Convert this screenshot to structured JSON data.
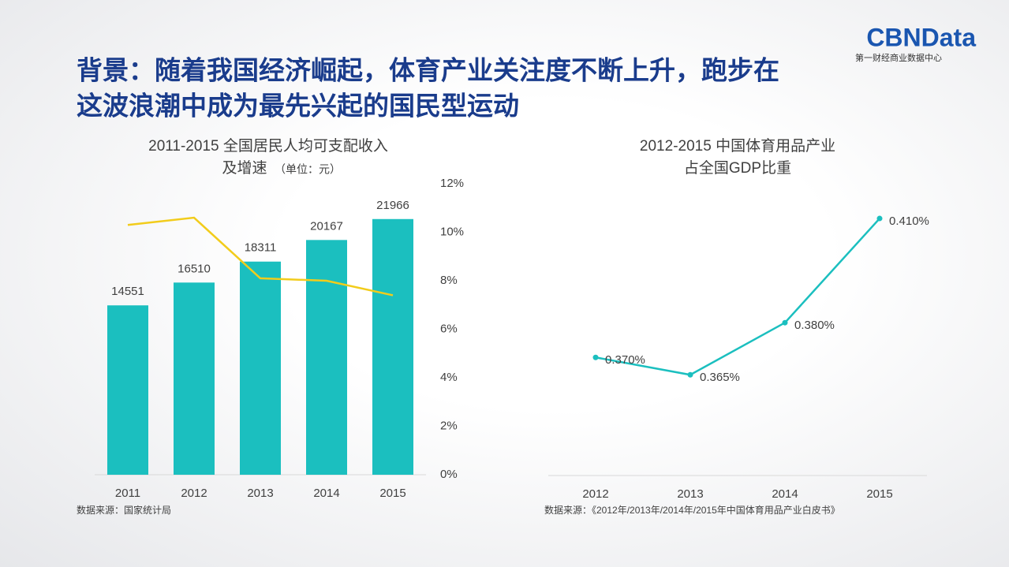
{
  "header": {
    "title": [
      "背景：随着我国经济崛起，体育产业关注度不断上升，跑步在",
      "这波浪潮中成为最先兴起的国民型运动"
    ],
    "logo": "CBNData",
    "logo_subtitle": "第一财经商业数据中心"
  },
  "chart_data": [
    {
      "type": "bar",
      "title": [
        "2011-2015 全国居民人均可支配收入",
        "及增速"
      ],
      "subtitle": "（单位：元）",
      "categories": [
        "2011",
        "2012",
        "2013",
        "2014",
        "2015"
      ],
      "series": [
        {
          "type": "bar",
          "color": "#1bbfbf",
          "values": [
            14551,
            16510,
            18311,
            20167,
            21966
          ]
        },
        {
          "type": "line",
          "color": "#f2cc1b",
          "axis": "y2",
          "values": [
            10.3,
            10.6,
            8.1,
            8.0,
            7.4
          ]
        }
      ],
      "ylim": [
        0,
        25000
      ],
      "y2lim": [
        0,
        12
      ],
      "y2ticks": [
        {
          "value": 0,
          "label": "0%"
        },
        {
          "value": 2,
          "label": "2%"
        },
        {
          "value": 4,
          "label": "4%"
        },
        {
          "value": 6,
          "label": "6%"
        },
        {
          "value": 8,
          "label": "8%"
        },
        {
          "value": 10,
          "label": "10%"
        },
        {
          "value": 12,
          "label": "12%"
        }
      ],
      "source": "数据来源：国家统计局"
    },
    {
      "type": "line",
      "title": [
        "2012-2015 中国体育用品产业",
        "占全国GDP比重"
      ],
      "categories": [
        "2012",
        "2013",
        "2014",
        "2015"
      ],
      "values": [
        0.37,
        0.365,
        0.38,
        0.41
      ],
      "value_labels": [
        "0.370%",
        "0.365%",
        "0.380%",
        "0.410%"
      ],
      "color": "#1bbfbf",
      "ylim": [
        0.336,
        0.42
      ],
      "source": "数据来源：《2012年/2013年/2014年/2015年中国体育用品产业白皮书》"
    }
  ]
}
